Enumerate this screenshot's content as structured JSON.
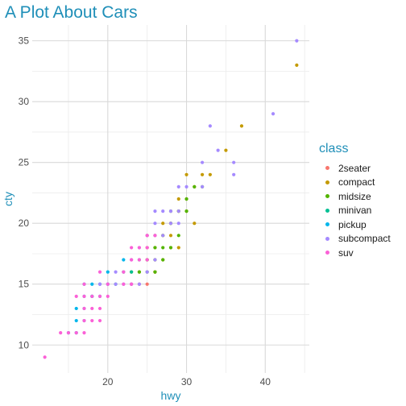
{
  "chart_data": {
    "type": "scatter",
    "title": "A Plot About Cars",
    "xlabel": "hwy",
    "ylabel": "cty",
    "xlim": [
      10.4,
      45.6
    ],
    "ylim": [
      7.7,
      36.3
    ],
    "x_ticks": [
      20,
      30,
      40
    ],
    "y_ticks": [
      10,
      15,
      20,
      25,
      30,
      35
    ],
    "grid": true,
    "legend_position": "right",
    "legend_title": "class",
    "series": [
      {
        "name": "2seater",
        "color": "#F8766D",
        "points": [
          [
            26,
            16
          ],
          [
            25,
            15
          ],
          [
            26,
            16
          ],
          [
            24,
            15
          ],
          [
            23,
            15
          ]
        ]
      },
      {
        "name": "compact",
        "color": "#C49A00",
        "points": [
          [
            29,
            18
          ],
          [
            29,
            21
          ],
          [
            31,
            20
          ],
          [
            30,
            21
          ],
          [
            26,
            16
          ],
          [
            25,
            18
          ],
          [
            28,
            18
          ],
          [
            27,
            17
          ],
          [
            26,
            18
          ],
          [
            25,
            17
          ],
          [
            27,
            19
          ],
          [
            28,
            20
          ],
          [
            26,
            19
          ],
          [
            29,
            22
          ],
          [
            30,
            24
          ],
          [
            35,
            26
          ],
          [
            37,
            28
          ],
          [
            44,
            33
          ],
          [
            33,
            24
          ],
          [
            29,
            21
          ],
          [
            28,
            19
          ],
          [
            24,
            16
          ],
          [
            26,
            17
          ],
          [
            25,
            19
          ],
          [
            27,
            20
          ],
          [
            31,
            23
          ],
          [
            30,
            22
          ],
          [
            32,
            24
          ],
          [
            23,
            16
          ]
        ]
      },
      {
        "name": "midsize",
        "color": "#53B400",
        "points": [
          [
            26,
            16
          ],
          [
            27,
            18
          ],
          [
            25,
            17
          ],
          [
            28,
            20
          ],
          [
            29,
            21
          ],
          [
            27,
            19
          ],
          [
            30,
            22
          ],
          [
            31,
            23
          ],
          [
            32,
            23
          ],
          [
            28,
            21
          ],
          [
            26,
            17
          ],
          [
            27,
            17
          ],
          [
            29,
            19
          ],
          [
            24,
            16
          ],
          [
            25,
            16
          ],
          [
            26,
            18
          ],
          [
            28,
            18
          ],
          [
            30,
            21
          ]
        ]
      },
      {
        "name": "minivan",
        "color": "#00C094",
        "points": [
          [
            22,
            16
          ],
          [
            21,
            15
          ],
          [
            24,
            17
          ],
          [
            23,
            16
          ],
          [
            18,
            14
          ]
        ]
      },
      {
        "name": "pickup",
        "color": "#00B6EB",
        "points": [
          [
            17,
            15
          ],
          [
            16,
            12
          ],
          [
            16,
            13
          ],
          [
            17,
            14
          ],
          [
            18,
            15
          ],
          [
            19,
            15
          ],
          [
            20,
            15
          ],
          [
            20,
            16
          ],
          [
            22,
            17
          ],
          [
            17,
            13
          ],
          [
            15,
            11
          ],
          [
            16,
            11
          ],
          [
            18,
            14
          ],
          [
            19,
            14
          ],
          [
            17,
            12
          ]
        ]
      },
      {
        "name": "subcompact",
        "color": "#A58AFF",
        "points": [
          [
            44,
            35
          ],
          [
            41,
            29
          ],
          [
            36,
            25
          ],
          [
            36,
            24
          ],
          [
            34,
            26
          ],
          [
            33,
            28
          ],
          [
            32,
            23
          ],
          [
            32,
            25
          ],
          [
            30,
            23
          ],
          [
            29,
            20
          ],
          [
            28,
            20
          ],
          [
            27,
            19
          ],
          [
            26,
            21
          ],
          [
            26,
            20
          ],
          [
            25,
            19
          ],
          [
            24,
            18
          ],
          [
            23,
            17
          ],
          [
            22,
            15
          ],
          [
            21,
            15
          ],
          [
            29,
            23
          ],
          [
            27,
            21
          ],
          [
            28,
            21
          ],
          [
            26,
            19
          ],
          [
            29,
            21
          ],
          [
            26,
            17
          ],
          [
            25,
            16
          ],
          [
            24,
            15
          ],
          [
            23,
            15
          ],
          [
            21,
            16
          ],
          [
            20,
            15
          ],
          [
            19,
            15
          ]
        ]
      },
      {
        "name": "suv",
        "color": "#FB61D7",
        "points": [
          [
            12,
            9
          ],
          [
            14,
            11
          ],
          [
            15,
            11
          ],
          [
            16,
            11
          ],
          [
            17,
            11
          ],
          [
            17,
            12
          ],
          [
            18,
            12
          ],
          [
            19,
            12
          ],
          [
            17,
            13
          ],
          [
            18,
            13
          ],
          [
            19,
            13
          ],
          [
            16,
            14
          ],
          [
            17,
            14
          ],
          [
            18,
            14
          ],
          [
            19,
            14
          ],
          [
            20,
            14
          ],
          [
            20,
            15
          ],
          [
            22,
            15
          ],
          [
            23,
            15
          ],
          [
            22,
            16
          ],
          [
            23,
            17
          ],
          [
            23,
            18
          ],
          [
            24,
            18
          ],
          [
            25,
            18
          ],
          [
            25,
            17
          ],
          [
            24,
            17
          ],
          [
            19,
            16
          ],
          [
            26,
            19
          ],
          [
            25,
            19
          ],
          [
            17,
            15
          ]
        ]
      }
    ]
  }
}
